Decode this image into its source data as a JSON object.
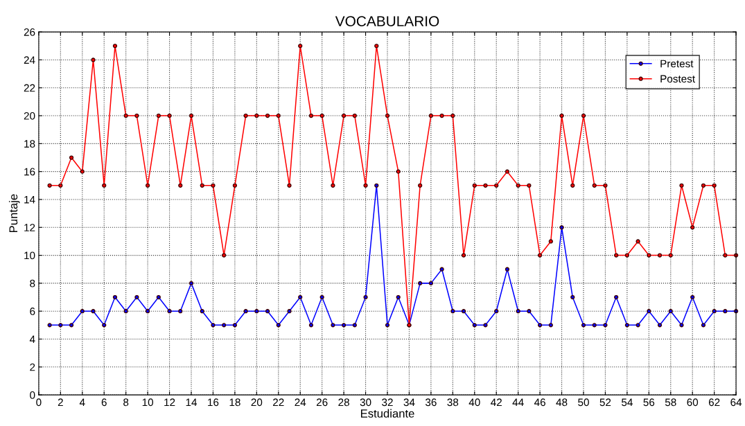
{
  "chart_data": {
    "type": "line",
    "title": "VOCABULARIO",
    "xlabel": "Estudiante",
    "ylabel": "Puntaje",
    "x": [
      1,
      2,
      3,
      4,
      5,
      6,
      7,
      8,
      9,
      10,
      11,
      12,
      13,
      14,
      15,
      16,
      17,
      18,
      19,
      20,
      21,
      22,
      23,
      24,
      25,
      26,
      27,
      28,
      29,
      30,
      31,
      32,
      33,
      34,
      35,
      36,
      37,
      38,
      39,
      40,
      41,
      42,
      43,
      44,
      45,
      46,
      47,
      48,
      49,
      50,
      51,
      52,
      53,
      54,
      55,
      56,
      57,
      58,
      59,
      60,
      61,
      62,
      63,
      64
    ],
    "series": [
      {
        "name": "Pretest",
        "color": "#0000ff",
        "values": [
          5,
          5,
          5,
          6,
          6,
          5,
          7,
          6,
          7,
          6,
          7,
          6,
          6,
          8,
          6,
          5,
          5,
          5,
          6,
          6,
          6,
          5,
          6,
          7,
          5,
          7,
          5,
          5,
          5,
          7,
          15,
          5,
          7,
          5,
          8,
          8,
          9,
          6,
          6,
          5,
          5,
          6,
          9,
          6,
          6,
          5,
          5,
          12,
          7,
          5,
          5,
          5,
          7,
          5,
          5,
          6,
          5,
          6,
          5,
          7,
          5,
          6,
          6,
          6
        ]
      },
      {
        "name": "Postest",
        "color": "#ff0000",
        "values": [
          15,
          15,
          17,
          16,
          24,
          15,
          25,
          20,
          20,
          15,
          20,
          20,
          15,
          20,
          15,
          15,
          10,
          15,
          20,
          20,
          20,
          20,
          15,
          25,
          20,
          20,
          15,
          20,
          20,
          15,
          25,
          20,
          16,
          5,
          15,
          20,
          20,
          20,
          10,
          15,
          15,
          15,
          16,
          15,
          15,
          10,
          11,
          20,
          15,
          20,
          15,
          15,
          10,
          10,
          11,
          10,
          10,
          10,
          15,
          12,
          15,
          15,
          10,
          10
        ]
      }
    ],
    "xlim": [
      0,
      64
    ],
    "xticks": [
      0,
      2,
      4,
      6,
      8,
      10,
      12,
      14,
      16,
      18,
      20,
      22,
      24,
      26,
      28,
      30,
      32,
      34,
      36,
      38,
      40,
      42,
      44,
      46,
      48,
      50,
      52,
      54,
      56,
      58,
      60,
      62,
      64
    ],
    "ylim": [
      0,
      26
    ],
    "yticks": [
      0,
      2,
      4,
      6,
      8,
      10,
      12,
      14,
      16,
      18,
      20,
      22,
      24,
      26
    ],
    "grid": true,
    "legend": "top right",
    "marker": "circle",
    "line_style": "solid"
  }
}
